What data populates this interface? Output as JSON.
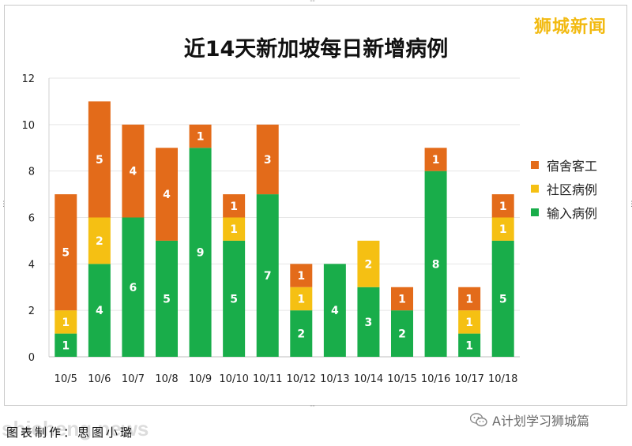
{
  "brand_watermark": "狮城新闻",
  "url_watermark": "shicheng.news",
  "caption": "图表制作：思图小璐",
  "source": "A计划学习狮城篇",
  "chart_data": {
    "type": "bar",
    "stacked": true,
    "title": "近14天新加坡每日新增病例",
    "xlabel": "",
    "ylabel": "",
    "categories": [
      "10/5",
      "10/6",
      "10/7",
      "10/8",
      "10/9",
      "10/10",
      "10/11",
      "10/12",
      "10/13",
      "10/14",
      "10/15",
      "10/16",
      "10/17",
      "10/18"
    ],
    "ylim": [
      0,
      12
    ],
    "yticks": [
      "0",
      "2",
      "4",
      "6",
      "8",
      "10",
      "12"
    ],
    "grid": true,
    "legend_position": "right",
    "series": [
      {
        "name": "输入病例",
        "color": "#19ad4a",
        "values": [
          1,
          4,
          6,
          5,
          9,
          5,
          7,
          2,
          4,
          3,
          2,
          8,
          1,
          5
        ]
      },
      {
        "name": "社区病例",
        "color": "#f5c013",
        "values": [
          1,
          2,
          0,
          0,
          0,
          1,
          0,
          1,
          0,
          2,
          0,
          0,
          1,
          1
        ]
      },
      {
        "name": "宿舍客工",
        "color": "#e36b1a",
        "values": [
          5,
          5,
          4,
          4,
          1,
          1,
          3,
          1,
          0,
          0,
          1,
          1,
          1,
          1
        ]
      }
    ],
    "legend_order": [
      "宿舍客工",
      "社区病例",
      "输入病例"
    ]
  }
}
